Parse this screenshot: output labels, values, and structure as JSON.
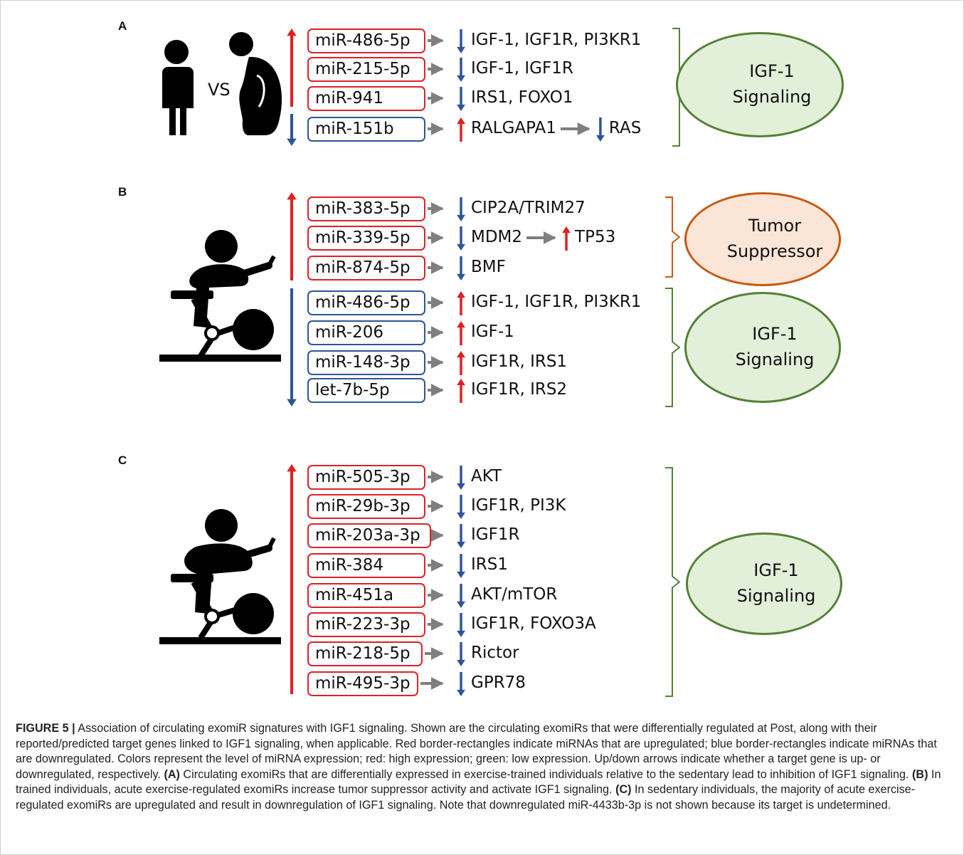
{
  "panels": [
    {
      "letter": "A",
      "vs_label": "VS",
      "groups": [
        {
          "direction": "up",
          "mirs": [
            {
              "name": "miR-486-5p",
              "target_dir": "down",
              "target": "IGF-1, IGF1R, PI3KR1"
            },
            {
              "name": "miR-215-5p",
              "target_dir": "down",
              "target": "IGF-1, IGF1R"
            },
            {
              "name": "miR-941",
              "target_dir": "down",
              "target": "IRS1, FOXO1"
            }
          ]
        },
        {
          "direction": "down",
          "mirs": [
            {
              "name": "miR-151b",
              "target_dir": "up",
              "target": "RALGAPA1",
              "chain_dir": "down",
              "chain_target": "RAS"
            }
          ]
        }
      ],
      "outcomes": [
        {
          "direction": "down",
          "line1": "IGF-1",
          "line2": "Signaling",
          "color": "green"
        }
      ]
    },
    {
      "letter": "B",
      "groups": [
        {
          "direction": "up",
          "mirs": [
            {
              "name": "miR-383-5p",
              "target_dir": "down",
              "target": "CIP2A/TRIM27"
            },
            {
              "name": "miR-339-5p",
              "target_dir": "down",
              "target": "MDM2",
              "chain_dir": "up",
              "chain_target": "TP53"
            },
            {
              "name": "miR-874-5p",
              "target_dir": "down",
              "target": "BMF"
            }
          ]
        },
        {
          "direction": "down",
          "mirs": [
            {
              "name": "miR-486-5p",
              "target_dir": "up",
              "target": "IGF-1, IGF1R, PI3KR1"
            },
            {
              "name": "miR-206",
              "target_dir": "up",
              "target": "IGF-1"
            },
            {
              "name": "miR-148-3p",
              "target_dir": "up",
              "target": "IGF1R, IRS1"
            },
            {
              "name": "let-7b-5p",
              "target_dir": "up",
              "target": "IGF1R, IRS2"
            }
          ]
        }
      ],
      "outcomes": [
        {
          "direction": "up",
          "line1": "Tumor",
          "line2": "Suppressor",
          "color": "orange"
        },
        {
          "direction": "up",
          "line1": "IGF-1",
          "line2": "Signaling",
          "color": "green"
        }
      ]
    },
    {
      "letter": "C",
      "groups": [
        {
          "direction": "up",
          "mirs": [
            {
              "name": "miR-505-3p",
              "target_dir": "down",
              "target": "AKT"
            },
            {
              "name": "miR-29b-3p",
              "target_dir": "down",
              "target": "IGF1R, PI3K"
            },
            {
              "name": "miR-203a-3p",
              "target_dir": "down",
              "target": "IGF1R"
            },
            {
              "name": "miR-384",
              "target_dir": "down",
              "target": "IRS1"
            },
            {
              "name": "miR-451a",
              "target_dir": "down",
              "target": "AKT/mTOR"
            },
            {
              "name": "miR-223-3p",
              "target_dir": "down",
              "target": "IGF1R, FOXO3A"
            },
            {
              "name": "miR-218-5p",
              "target_dir": "down",
              "target": "Rictor"
            },
            {
              "name": "miR-495-3p",
              "target_dir": "down",
              "target": "GPR78"
            }
          ]
        }
      ],
      "outcomes": [
        {
          "direction": "down",
          "line1": "IGF-1",
          "line2": "Signaling",
          "color": "green"
        }
      ]
    }
  ],
  "caption": {
    "label": "FIGURE 5 |",
    "intro": " Association of circulating exomiR signatures with IGF1 signaling. Shown are the circulating exomiRs that were differentially regulated at Post, along with their reported/predicted target genes linked to IGF1 signaling, when applicable. Red border-rectangles indicate miRNAs that are upregulated; blue border-rectangles indicate miRNAs that are downregulated. Colors represent the level of miRNA expression; red: high expression; green: low expression. Up/down arrows indicate whether a target gene is up- or downregulated, respectively. ",
    "a_label": "(A)",
    "a_text": " Circulating exomiRs that are differentially expressed in exercise-trained individuals relative to the sedentary lead to inhibition of IGF1 signaling. ",
    "b_label": "(B)",
    "b_text": " In trained individuals, acute exercise-regulated exomiRs increase tumor suppressor activity and activate IGF1 signaling. ",
    "c_label": "(C)",
    "c_text": " In sedentary individuals, the majority of acute exercise-regulated exomiRs are upregulated and result in downregulation of IGF1 signaling. Note that downregulated miR-4433b-3p is not shown because its target is undetermined."
  },
  "colors": {
    "up_red": "#e02020",
    "down_blue": "#2f5597",
    "arrow_gray": "#7f7f7f",
    "green_fill": "#e2efd9",
    "green_border": "#538135",
    "orange_fill": "#fbe5d6",
    "orange_border": "#c55a11"
  }
}
